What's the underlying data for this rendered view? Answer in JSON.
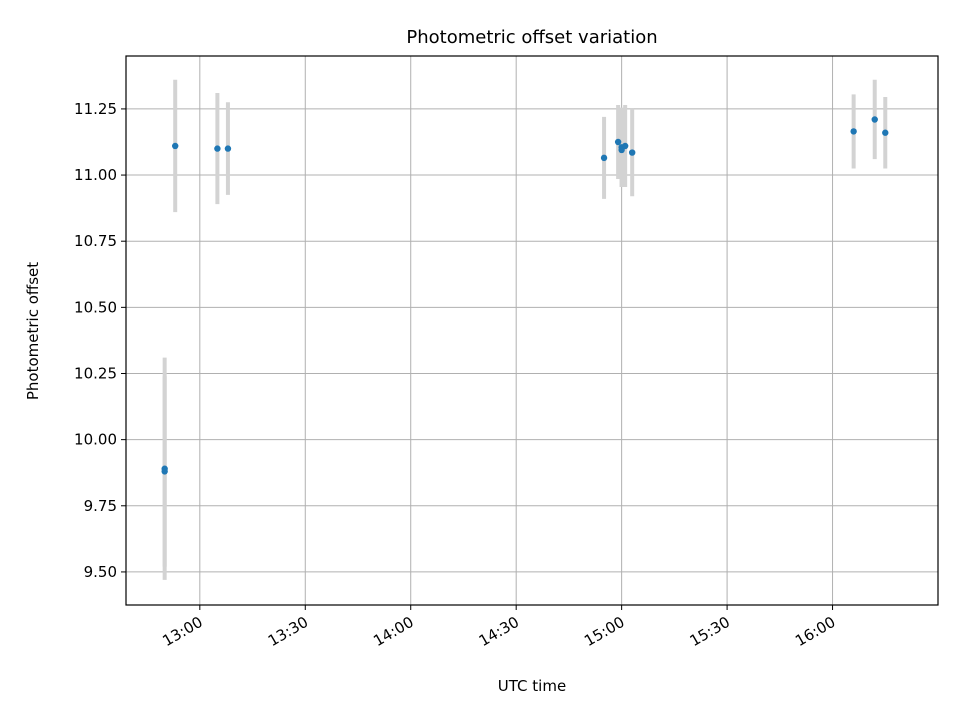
{
  "chart_data": {
    "type": "scatter",
    "title": "Photometric offset variation",
    "xlabel": "UTC time",
    "ylabel": "Photometric offset",
    "x_axis": {
      "kind": "time",
      "range": [
        "12:39",
        "16:30"
      ],
      "ticks": [
        "13:00",
        "13:30",
        "14:00",
        "14:30",
        "15:00",
        "15:30",
        "16:00"
      ]
    },
    "y_axis": {
      "range": [
        9.375,
        11.45
      ],
      "ticks": [
        9.5,
        9.75,
        10.0,
        10.25,
        10.5,
        10.75,
        11.0,
        11.25
      ],
      "tick_labels": [
        "9.50",
        "9.75",
        "10.00",
        "10.25",
        "10.50",
        "10.75",
        "11.00",
        "11.25"
      ]
    },
    "grid": true,
    "marker_color": "#1f77b4",
    "errorbar_color": "#d3d3d3",
    "series": [
      {
        "points": [
          {
            "x": "12:50",
            "y": 9.89,
            "err": 0.42
          },
          {
            "x": "12:50",
            "y": 9.88,
            "err": 0.36
          },
          {
            "x": "12:53",
            "y": 11.11,
            "err": 0.25
          },
          {
            "x": "13:05",
            "y": 11.1,
            "err": 0.21
          },
          {
            "x": "13:08",
            "y": 11.1,
            "err": 0.175
          },
          {
            "x": "14:55",
            "y": 11.065,
            "err": 0.155
          },
          {
            "x": "14:59",
            "y": 11.125,
            "err": 0.14
          },
          {
            "x": "15:00",
            "y": 11.105,
            "err": 0.15
          },
          {
            "x": "15:00",
            "y": 11.095,
            "err": 0.14
          },
          {
            "x": "15:01",
            "y": 11.11,
            "err": 0.155
          },
          {
            "x": "15:03",
            "y": 11.085,
            "err": 0.165
          },
          {
            "x": "16:06",
            "y": 11.165,
            "err": 0.14
          },
          {
            "x": "16:12",
            "y": 11.21,
            "err": 0.15
          },
          {
            "x": "16:15",
            "y": 11.16,
            "err": 0.135
          }
        ]
      }
    ]
  }
}
